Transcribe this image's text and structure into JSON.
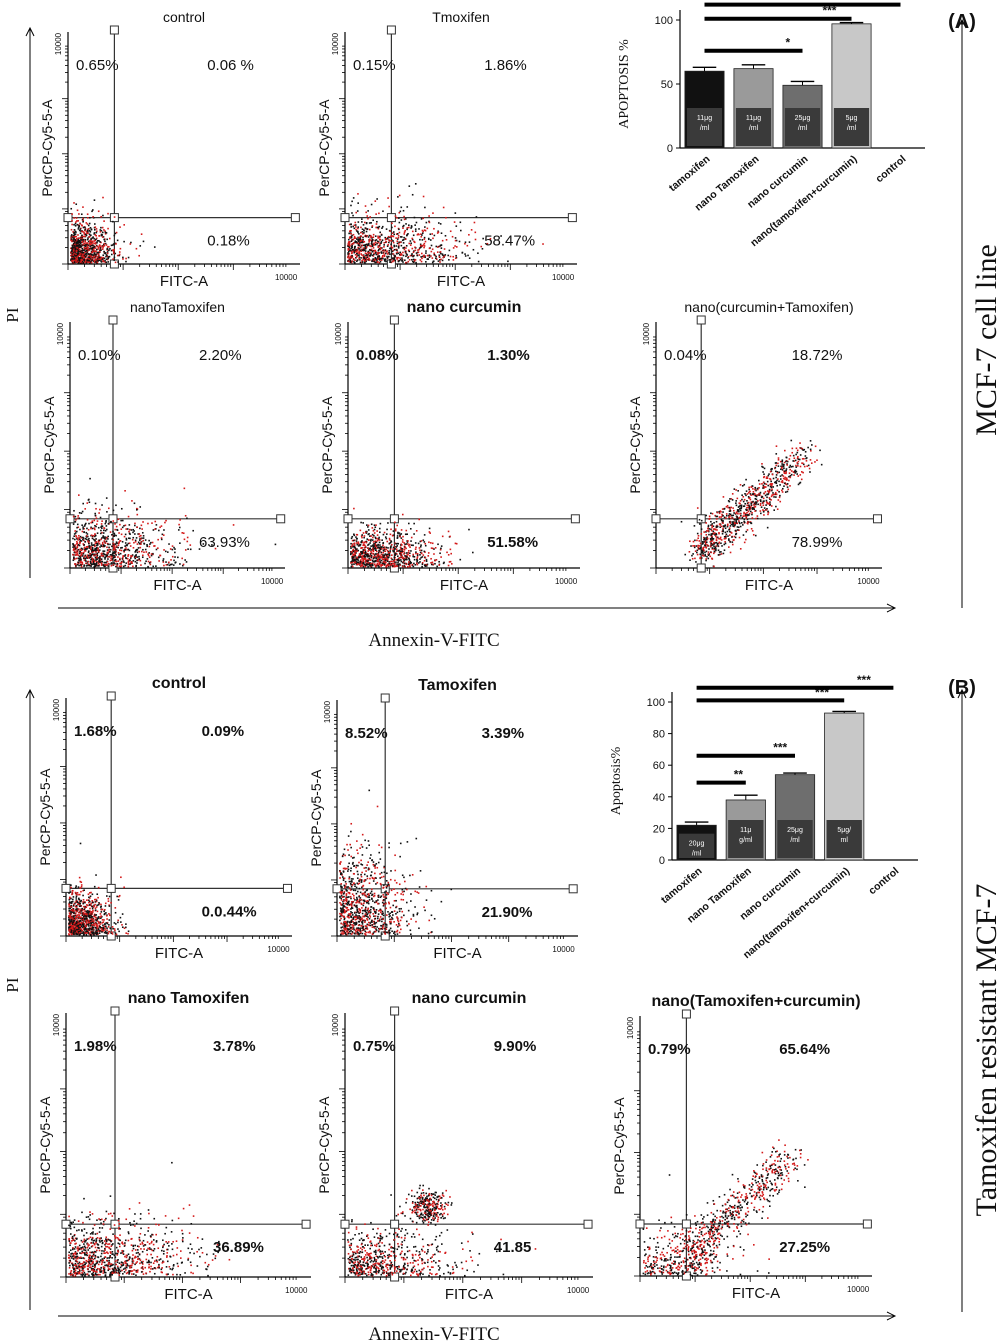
{
  "colors": {
    "axis": "#000000",
    "pos": "#d41a1a",
    "neg": "#111111",
    "bar_dark": "#111111",
    "bar_grey": "#9a9a9a",
    "bar_mid": "#6e6e6e",
    "bar_light": "#c8c8c8",
    "label_box": "#3a3a3a"
  },
  "panels": [
    {
      "letter": "(A)",
      "side_label": "MCF-7 cell line",
      "x_label": "Annexin-V-FITC",
      "y_label": "PI",
      "flows": [
        {
          "title": "control",
          "bold_title": false,
          "bold_pct": false,
          "ul": "0.65%",
          "ur": "0.06 %",
          "lr": "0.18%",
          "pattern": "control"
        },
        {
          "title": "Tmoxifen",
          "bold_title": false,
          "bold_pct": false,
          "ul": "0.15%",
          "ur": "1.86%",
          "lr": "58.47%",
          "pattern": "spread"
        },
        {
          "title": "nanoTamoxifen",
          "bold_title": false,
          "bold_pct": false,
          "ul": "0.10%",
          "ur": "2.20%",
          "lr": "63.93%",
          "pattern": "spread"
        },
        {
          "title": "nano curcumin",
          "bold_title": true,
          "bold_pct": true,
          "ul": "0.08%",
          "ur": "1.30%",
          "lr": "51.58%",
          "pattern": "low"
        },
        {
          "title": "nano(curcumin+Tamoxifen)",
          "bold_title": false,
          "bold_pct": false,
          "ul": "0.04%",
          "ur": "18.72%",
          "lr": "78.99%",
          "pattern": "diag"
        }
      ],
      "axis": {
        "x": "FITC-A",
        "y": "PerCP-Cy5-5-A",
        "ymax": "10000",
        "xmax": "10000"
      },
      "bar": {
        "type": "bar",
        "ylabel": "APOPTOSIS %",
        "ylim": [
          0,
          100
        ],
        "yticks": [
          "0",
          "50",
          "100"
        ],
        "categories": [
          "tamoxifen",
          "nano Tamoxifen",
          "nano curcumin",
          "nano(tamoxifen+curcumin)",
          "control"
        ],
        "values": [
          60,
          62,
          49,
          97,
          0
        ],
        "errors": [
          3,
          3,
          3,
          1,
          0
        ],
        "dose_labels": [
          "11μg /ml",
          "11μg /ml",
          "25μg /ml",
          "5μg /ml",
          ""
        ],
        "sig": [
          {
            "from": 0,
            "to": 2,
            "label": "*"
          },
          {
            "from": 0,
            "to": 3,
            "label": "***"
          },
          {
            "from": 0,
            "to": 4,
            "label": "***"
          }
        ]
      }
    },
    {
      "letter": "(B)",
      "side_label": "Tamoxifen resistant MCF-7",
      "x_label": "Annexin-V-FITC",
      "y_label": "PI",
      "flows": [
        {
          "title": "control",
          "bold_title": true,
          "bold_pct": true,
          "ul": "1.68%",
          "ur": "0.09%",
          "lr": "0.0.44%",
          "pattern": "control"
        },
        {
          "title": "Tamoxifen",
          "bold_title": true,
          "bold_pct": true,
          "ul": "8.52%",
          "ur": "3.39%",
          "lr": "21.90%",
          "pattern": "tall"
        },
        {
          "title": "nano Tamoxifen",
          "bold_title": true,
          "bold_pct": true,
          "ul": "1.98%",
          "ur": "3.78%",
          "lr": "36.89%",
          "pattern": "spread"
        },
        {
          "title": "nano curcumin",
          "bold_title": true,
          "bold_pct": true,
          "ul": "0.75%",
          "ur": "9.90%",
          "lr": "41.85",
          "pattern": "cluster"
        },
        {
          "title": "nano(Tamoxifen+curcumin)",
          "bold_title": true,
          "bold_pct": true,
          "ul": "0.79%",
          "ur": "65.64%",
          "lr": "27.25%",
          "pattern": "diag2"
        }
      ],
      "axis": {
        "x": "FITC-A",
        "y": "PerCP-Cy5-5-A",
        "ymax": "10000",
        "xmax": "10000"
      },
      "bar": {
        "type": "bar",
        "ylabel": "Apoptosis%",
        "ylim": [
          0,
          100
        ],
        "yticks": [
          "0",
          "20",
          "40",
          "60",
          "80",
          "100"
        ],
        "categories": [
          "tamoxifen",
          "nano Tamoxifen",
          "nano curcumin",
          "nano(tamoxifen+curcumin)",
          "control"
        ],
        "values": [
          22,
          38,
          54,
          93,
          0
        ],
        "errors": [
          2,
          3,
          1,
          1,
          0
        ],
        "dose_labels": [
          "20μg /ml",
          "11μ g/ml",
          "25μg /ml",
          "5μg/ ml",
          ""
        ],
        "sig": [
          {
            "from": 0,
            "to": 1,
            "label": "**"
          },
          {
            "from": 0,
            "to": 2,
            "label": "***"
          },
          {
            "from": 0,
            "to": 3,
            "label": "***"
          },
          {
            "from": 0,
            "to": 4,
            "label": "***"
          }
        ]
      }
    }
  ]
}
